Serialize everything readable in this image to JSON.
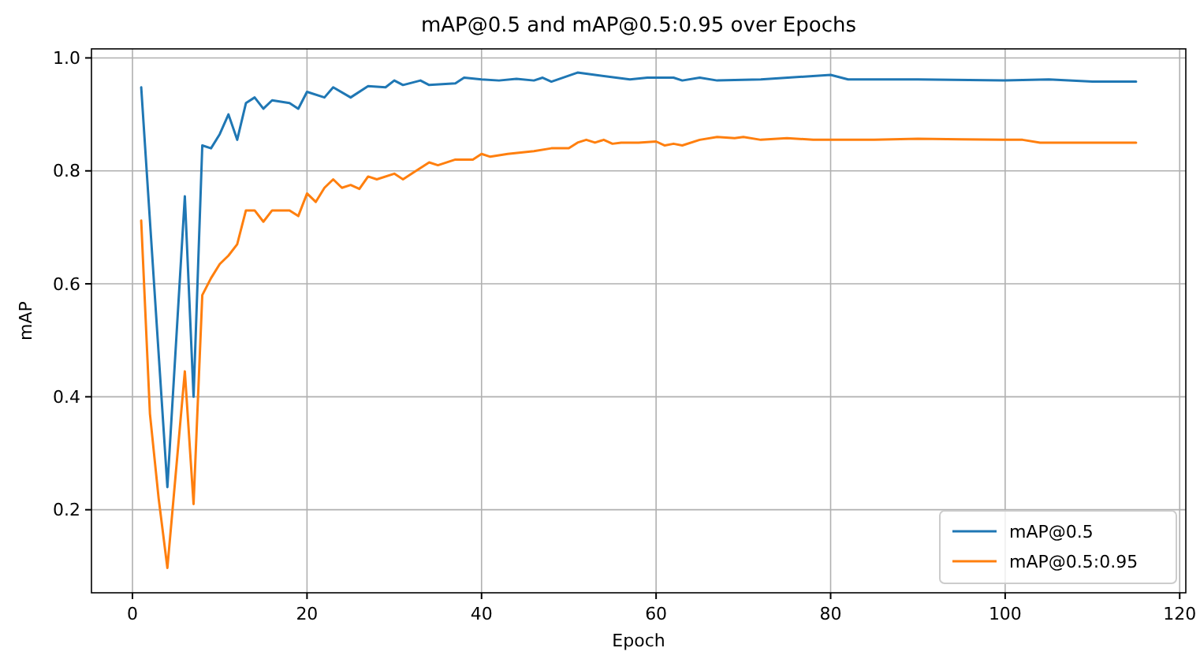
{
  "chart_data": {
    "type": "line",
    "title": "mAP@0.5 and mAP@0.5:0.95 over Epochs",
    "xlabel": "Epoch",
    "ylabel": "mAP",
    "xlim": [
      -4.7,
      120.7
    ],
    "xticks": [
      0,
      20,
      40,
      60,
      80,
      100,
      120
    ],
    "ylim": [
      0.053,
      1.016
    ],
    "yticks": [
      {
        "value": 0.2,
        "label": "0.2"
      },
      {
        "value": 0.4,
        "label": "0.4"
      },
      {
        "value": 0.6,
        "label": "0.6"
      },
      {
        "value": 0.8,
        "label": "0.8"
      },
      {
        "value": 1.0,
        "label": "1.0"
      }
    ],
    "grid": true,
    "legend": "bottom right",
    "line_style": "solid",
    "series": [
      {
        "name": "mAP@0.5",
        "color": "#1f77b4",
        "x": [
          1,
          4,
          6,
          7,
          8,
          9,
          10,
          11,
          12,
          13,
          14,
          15,
          16,
          18,
          19,
          20,
          22,
          23,
          25,
          27,
          29,
          30,
          31,
          33,
          34,
          37,
          38,
          40,
          42,
          44,
          46,
          47,
          48,
          51,
          53,
          57,
          59,
          62,
          63,
          65,
          67,
          72,
          80,
          82,
          90,
          100,
          105,
          110,
          115
        ],
        "values": [
          0.948,
          0.24,
          0.755,
          0.4,
          0.845,
          0.84,
          0.865,
          0.9,
          0.855,
          0.92,
          0.93,
          0.91,
          0.925,
          0.92,
          0.91,
          0.94,
          0.93,
          0.948,
          0.93,
          0.95,
          0.948,
          0.96,
          0.952,
          0.96,
          0.952,
          0.955,
          0.965,
          0.962,
          0.96,
          0.963,
          0.96,
          0.965,
          0.958,
          0.974,
          0.97,
          0.962,
          0.965,
          0.965,
          0.96,
          0.965,
          0.96,
          0.962,
          0.97,
          0.962,
          0.962,
          0.96,
          0.962,
          0.958,
          0.958
        ]
      },
      {
        "name": "mAP@0.5:0.95",
        "color": "#ff7f0e",
        "x": [
          1,
          2,
          3,
          4,
          6,
          7,
          8,
          9,
          10,
          11,
          12,
          13,
          14,
          15,
          16,
          18,
          19,
          20,
          21,
          22,
          23,
          24,
          25,
          26,
          27,
          28,
          30,
          31,
          32,
          34,
          35,
          37,
          39,
          40,
          41,
          43,
          46,
          48,
          50,
          51,
          52,
          53,
          54,
          55,
          56,
          58,
          60,
          61,
          62,
          63,
          65,
          67,
          69,
          70,
          72,
          75,
          78,
          80,
          85,
          90,
          95,
          100,
          102,
          104,
          110,
          115
        ],
        "values": [
          0.712,
          0.37,
          0.22,
          0.097,
          0.445,
          0.21,
          0.58,
          0.61,
          0.635,
          0.65,
          0.67,
          0.73,
          0.73,
          0.71,
          0.73,
          0.73,
          0.72,
          0.76,
          0.745,
          0.77,
          0.785,
          0.77,
          0.775,
          0.768,
          0.79,
          0.785,
          0.795,
          0.785,
          0.795,
          0.815,
          0.81,
          0.82,
          0.82,
          0.83,
          0.825,
          0.83,
          0.835,
          0.84,
          0.84,
          0.85,
          0.855,
          0.85,
          0.855,
          0.848,
          0.85,
          0.85,
          0.852,
          0.845,
          0.848,
          0.845,
          0.855,
          0.86,
          0.858,
          0.86,
          0.855,
          0.858,
          0.855,
          0.855,
          0.855,
          0.857,
          0.856,
          0.855,
          0.855,
          0.85,
          0.85,
          0.85
        ]
      }
    ]
  }
}
